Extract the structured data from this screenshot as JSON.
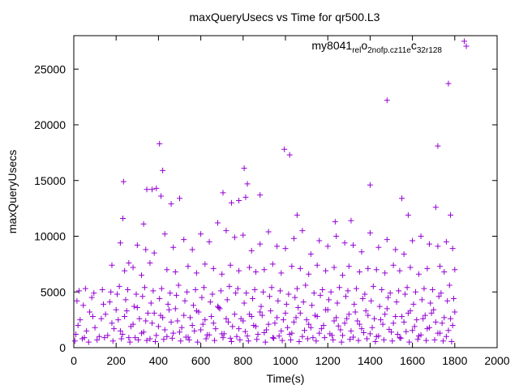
{
  "chart_data": {
    "type": "scatter",
    "title": "maxQueryUsecs vs Time for qr500.L3",
    "xlabel": "Time(s)",
    "ylabel": "maxQueryUsecs",
    "xlim": [
      0,
      2000
    ],
    "ylim": [
      0,
      28000
    ],
    "xticks": [
      0,
      200,
      400,
      600,
      800,
      1000,
      1200,
      1400,
      1600,
      1800,
      2000
    ],
    "yticks": [
      0,
      5000,
      10000,
      15000,
      20000,
      25000
    ],
    "xtick_labels": [
      "0",
      "200",
      "400",
      "600",
      "800",
      "1000",
      "1200",
      "1400",
      "1600",
      "1800",
      "2000"
    ],
    "ytick_labels": [
      "0",
      "5000",
      "10000",
      "15000",
      "20000",
      "25000"
    ],
    "grid": false,
    "legend_position": "top-right",
    "marker": "plus",
    "series": [
      {
        "name": "my8041_rel_o2nofp.cz11e_c32r128",
        "legend_parts": [
          "my8041",
          "rel",
          "o",
          "2nofp.cz11e",
          "c",
          "32r128"
        ],
        "color": "#9400d3",
        "x": [
          10,
          30,
          50,
          75,
          100,
          130,
          160,
          180,
          200,
          220,
          240,
          260,
          280,
          300,
          320,
          340,
          360,
          380,
          400,
          420,
          440,
          460,
          480,
          500,
          520,
          540,
          560,
          580,
          600,
          620,
          640,
          660,
          680,
          700,
          720,
          740,
          760,
          780,
          800,
          820,
          840,
          860,
          880,
          900,
          920,
          940,
          960,
          980,
          1000,
          1020,
          1040,
          1060,
          1080,
          1100,
          1120,
          1140,
          1160,
          1180,
          1200,
          1220,
          1240,
          1260,
          1280,
          1300,
          1320,
          1340,
          1360,
          1380,
          1400,
          1420,
          1440,
          1460,
          1480,
          1500,
          1520,
          1540,
          1560,
          1580,
          1600,
          1620,
          1640,
          1660,
          1680,
          1700,
          1720,
          1740,
          1760,
          1780,
          1800,
          20,
          60,
          90,
          120,
          150,
          190,
          210,
          230,
          250,
          270,
          290,
          310,
          330,
          350,
          370,
          390,
          410,
          430,
          450,
          470,
          490,
          510,
          530,
          550,
          570,
          590,
          610,
          630,
          650,
          670,
          690,
          710,
          730,
          750,
          770,
          790,
          810,
          830,
          850,
          870,
          890,
          910,
          930,
          950,
          970,
          990,
          1010,
          1030,
          1050,
          1070,
          1090,
          1110,
          1130,
          1150,
          1170,
          1190,
          1210,
          1230,
          1250,
          1270,
          1290,
          1310,
          1330,
          1350,
          1370,
          1390,
          1410,
          1430,
          1450,
          1470,
          1490,
          1510,
          1530,
          1550,
          1570,
          1590,
          1610,
          1630,
          1650,
          1670,
          1690,
          1710,
          1730,
          1750,
          1770,
          1790,
          15,
          45,
          85,
          140,
          170,
          205,
          245,
          285,
          325,
          365,
          405,
          445,
          485,
          525,
          565,
          605,
          645,
          685,
          725,
          765,
          805,
          845,
          885,
          925,
          965,
          1005,
          1045,
          1085,
          1125,
          1165,
          1205,
          1245,
          1285,
          1325,
          1365,
          1405,
          1445,
          1485,
          1525,
          1565,
          1605,
          1645,
          1685,
          1725,
          1765,
          1795,
          25,
          55,
          95,
          135,
          175,
          215,
          255,
          295,
          335,
          375,
          415,
          455,
          495,
          535,
          575,
          615,
          655,
          695,
          735,
          775,
          815,
          855,
          895,
          935,
          975,
          1015,
          1055,
          1095,
          1135,
          1175,
          1215,
          1255,
          1295,
          1335,
          1375,
          1415,
          1455,
          1495,
          1535,
          1575,
          1615,
          1655,
          1695,
          1735,
          1775,
          5,
          40,
          70,
          110,
          145,
          185,
          225,
          265,
          305,
          345,
          385,
          425,
          465,
          505,
          545,
          585,
          625,
          665,
          705,
          745,
          785,
          825,
          865,
          905,
          945,
          985,
          1025,
          1065,
          1105,
          1145,
          1185,
          1225,
          1265,
          1305,
          1345,
          1385,
          1425,
          1465,
          1505,
          1545,
          1585,
          1625,
          1665,
          1705,
          1745,
          1785,
          235,
          232,
          405,
          420,
          412,
          370,
          390,
          345,
          330,
          500,
          460,
          705,
          805,
          812,
          820,
          780,
          745,
          880,
          995,
          1020,
          1055,
          1235,
          1310,
          1400,
          1480,
          1550,
          1580,
          1710,
          1720,
          1770,
          1780,
          1845,
          220,
          260,
          300,
          340,
          380,
          430,
          470,
          520,
          560,
          600,
          640,
          680,
          720,
          760,
          800,
          840,
          880,
          920,
          960,
          1000,
          1040,
          1080,
          1120,
          1160,
          1200,
          1240,
          1280,
          1320,
          1360,
          1400,
          1440,
          1480,
          1520,
          1560,
          1600,
          1640,
          1680,
          1720,
          1760,
          1790,
          180,
          240,
          280,
          320,
          360,
          440,
          480,
          540,
          580,
          620,
          660,
          700,
          740,
          780,
          830,
          860,
          900,
          940,
          980,
          1030,
          1070,
          1110,
          1150,
          1190,
          1230,
          1270,
          1300,
          1350,
          1390,
          1430,
          1470,
          1510,
          1540,
          1590,
          1630,
          1670,
          1730,
          1750,
          1800
        ],
        "y": [
          1200,
          2500,
          900,
          3200,
          1800,
          2600,
          1100,
          2200,
          3400,
          1500,
          2800,
          900,
          2100,
          3600,
          1300,
          2400,
          800,
          3100,
          1900,
          2700,
          1000,
          2300,
          3500,
          1400,
          2900,
          950,
          2000,
          3300,
          1600,
          2500,
          1150,
          2200,
          3700,
          1250,
          2600,
          850,
          3000,
          1700,
          2400,
          1050,
          2800,
          1900,
          3200,
          1350,
          2100,
          900,
          2700,
          1500,
          3100,
          1200,
          2300,
          3600,
          1000,
          2500,
          1800,
          2900,
          1300,
          2000,
          3400,
          1100,
          2700,
          1600,
          2200,
          3000,
          950,
          2400,
          1700,
          3300,
          1250,
          2600,
          1050,
          2100,
          3500,
          1400,
          2800,
          900,
          2300,
          3100,
          1550,
          2500,
          1150,
          2900,
          1800,
          3400,
          1300,
          2200,
          1000,
          2600,
          3200,
          2000,
          1500,
          2800,
          1000,
          3000,
          1700,
          2500,
          1200,
          3300,
          1900,
          900,
          2600,
          1400,
          3100,
          2200,
          1100,
          2900,
          1600,
          3400,
          1300,
          2400,
          1800,
          950,
          2700,
          1500,
          3200,
          2100,
          1150,
          2800,
          1700,
          3500,
          1250,
          2300,
          1900,
          1000,
          2600,
          1450,
          3000,
          2000,
          1200,
          2900,
          1600,
          3300,
          2200,
          1050,
          2500,
          1800,
          1300,
          2700,
          3100,
          1550,
          2100,
          900,
          2800,
          1700,
          3400,
          1250,
          2400,
          1950,
          1100,
          2600,
          1500,
          3200,
          2100,
          1350,
          2900,
          1800,
          1000,
          2500,
          3000,
          1650,
          2200,
          1200,
          2800,
          1450,
          3300,
          1900,
          1050,
          2600,
          1700,
          3100,
          2300,
          1300,
          2700,
          1550,
          2000,
          4200,
          3800,
          4500,
          3900,
          4100,
          4800,
          4300,
          3700,
          4600,
          4000,
          4400,
          3900,
          4700,
          4200,
          3800,
          4500,
          4100,
          3600,
          4300,
          4900,
          4000,
          4400,
          3700,
          4600,
          4200,
          3900,
          4500,
          4100,
          3800,
          4700,
          4300,
          4000,
          4600,
          3900,
          4400,
          4200,
          3700,
          4500,
          4100,
          4800,
          3900,
          4300,
          4000,
          4600,
          4200,
          4400,
          5100,
          5300,
          4900,
          5200,
          5000,
          5500,
          5200,
          4800,
          5400,
          5100,
          5300,
          4900,
          5600,
          5000,
          5200,
          5400,
          4800,
          5100,
          5500,
          5300,
          4900,
          5200,
          5000,
          5400,
          5100,
          4800,
          5300,
          5600,
          4900,
          5200,
          5000,
          5400,
          5100,
          5300,
          4800,
          5500,
          5200,
          4900,
          5100,
          5400,
          5000,
          5300,
          5200,
          4900,
          5600,
          600,
          800,
          500,
          700,
          900,
          600,
          800,
          500,
          700,
          650,
          550,
          750,
          850,
          600,
          700,
          500,
          800,
          650,
          900,
          550,
          700,
          600,
          750,
          500,
          850,
          650,
          700,
          550,
          800,
          600,
          900,
          700,
          500,
          750,
          650,
          800,
          550,
          700,
          600,
          850,
          500,
          750,
          650,
          700,
          600,
          550,
          14900,
          11600,
          18300,
          15900,
          13600,
          14200,
          14300,
          14200,
          11100,
          13400,
          12900,
          13900,
          16100,
          13500,
          14700,
          13200,
          13000,
          13700,
          17800,
          17300,
          11900,
          11300,
          11400,
          14600,
          22200,
          13400,
          11900,
          12600,
          18100,
          23700,
          11900,
          27500,
          9400,
          7600,
          9200,
          8800,
          8500,
          10200,
          9000,
          9700,
          8800,
          10200,
          9500,
          11200,
          10500,
          9900,
          10100,
          8700,
          9300,
          10400,
          9100,
          8900,
          9800,
          10500,
          8400,
          9600,
          9100,
          10000,
          9400,
          9200,
          8600,
          10300,
          9000,
          9700,
          8800,
          8400,
          9600,
          10000,
          9300,
          9100,
          9500,
          8900,
          7400,
          6900,
          7200,
          6500,
          7600,
          7000,
          6800,
          7300,
          6700,
          7500,
          7100,
          6600,
          7400,
          6900,
          7200,
          6800,
          7000,
          7500,
          6700,
          7300,
          7100,
          6600,
          7400,
          6900,
          7200,
          6500,
          7300,
          6800,
          7100,
          7000,
          6700,
          7400,
          6900,
          7200,
          6600,
          7100,
          7300,
          6800,
          7000
        ]
      }
    ]
  }
}
